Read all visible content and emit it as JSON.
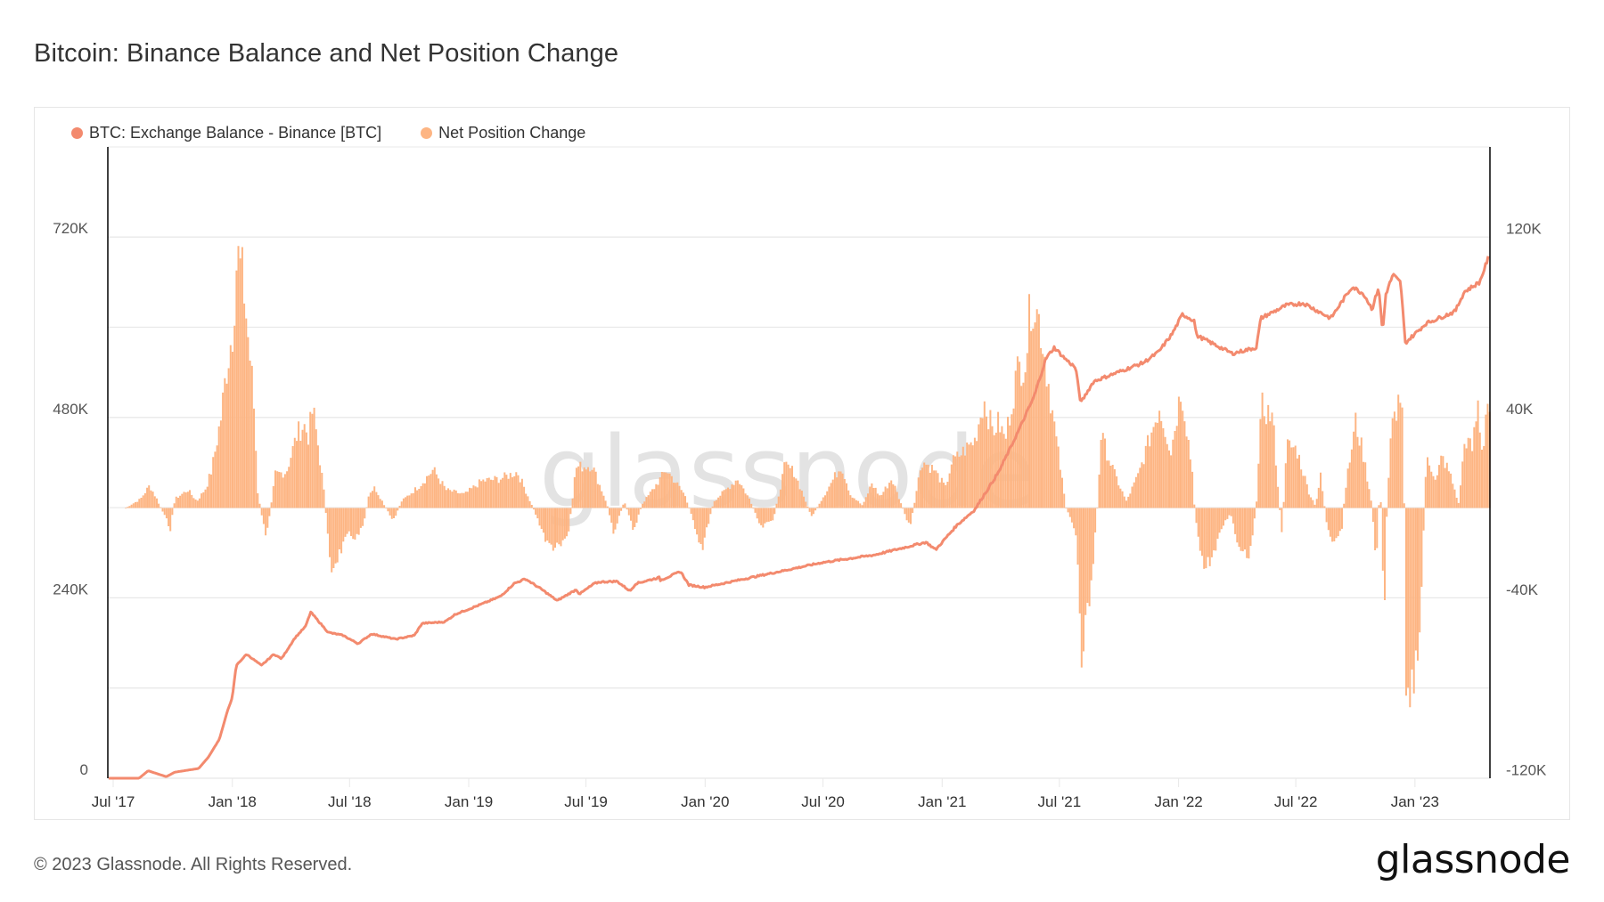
{
  "title": "Bitcoin: Binance Balance and Net Position Change",
  "legend": [
    {
      "label": "BTC: Exchange Balance - Binance [BTC]",
      "color": "#F38A6E"
    },
    {
      "label": "Net Position Change",
      "color": "#FDB583"
    }
  ],
  "footer": {
    "copyright": "© 2023 Glassnode. All Rights Reserved.",
    "logo": "glassnode"
  },
  "watermark": "glassnode",
  "colors": {
    "line": "#F38A6E",
    "bars": "#FDB583",
    "grid": "#e8e8e8",
    "axis": "#000000",
    "panel_border": "#e6e6e6"
  },
  "chart_data": {
    "type": "line+bar",
    "title": "Bitcoin: Binance Balance and Net Position Change",
    "xlabel": "",
    "x_start": "2017-07-01",
    "x_unit": "days since 2017-07-01",
    "x_ticks": [
      {
        "label": "Jul '17",
        "day": 0
      },
      {
        "label": "Jan '18",
        "day": 184
      },
      {
        "label": "Jul '18",
        "day": 365
      },
      {
        "label": "Jan '19",
        "day": 549
      },
      {
        "label": "Jul '19",
        "day": 730
      },
      {
        "label": "Jan '20",
        "day": 914
      },
      {
        "label": "Jul '20",
        "day": 1096
      },
      {
        "label": "Jan '21",
        "day": 1280
      },
      {
        "label": "Jul '21",
        "day": 1461
      },
      {
        "label": "Jan '22",
        "day": 1645
      },
      {
        "label": "Jul '22",
        "day": 1826
      },
      {
        "label": "Jan '23",
        "day": 2010
      }
    ],
    "x_range_days": [
      -7,
      2126
    ],
    "y_left": {
      "label": "BTC: Exchange Balance - Binance [BTC]",
      "range": [
        0,
        840000
      ],
      "ticks": [
        {
          "value": 0,
          "label": "0"
        },
        {
          "value": 240000,
          "label": "240K"
        },
        {
          "value": 480000,
          "label": "480K"
        },
        {
          "value": 720000,
          "label": "720K"
        }
      ],
      "gridlines": [
        0,
        120000,
        240000,
        360000,
        480000,
        600000,
        720000
      ]
    },
    "y_right": {
      "label": "Net Position Change",
      "range": [
        -120000,
        160000
      ],
      "ticks": [
        {
          "value": -120000,
          "label": "-120K"
        },
        {
          "value": -40000,
          "label": "-40K"
        },
        {
          "value": 40000,
          "label": "40K"
        },
        {
          "value": 120000,
          "label": "120K"
        }
      ]
    },
    "grid": true,
    "legend_position": "top-left",
    "series": [
      {
        "name": "BTC: Exchange Balance - Binance [BTC]",
        "type": "line",
        "axis": "left",
        "unit": "K BTC",
        "points": [
          [
            -7,
            0
          ],
          [
            40,
            0
          ],
          [
            54,
            10
          ],
          [
            82,
            2
          ],
          [
            95,
            8
          ],
          [
            132,
            13
          ],
          [
            147,
            28
          ],
          [
            164,
            52
          ],
          [
            176,
            88
          ],
          [
            184,
            108
          ],
          [
            190,
            150
          ],
          [
            206,
            165
          ],
          [
            229,
            150
          ],
          [
            248,
            165
          ],
          [
            260,
            159
          ],
          [
            280,
            186
          ],
          [
            297,
            202
          ],
          [
            305,
            221
          ],
          [
            332,
            194
          ],
          [
            355,
            190
          ],
          [
            378,
            179
          ],
          [
            399,
            192
          ],
          [
            436,
            185
          ],
          [
            465,
            190
          ],
          [
            477,
            206
          ],
          [
            512,
            208
          ],
          [
            528,
            218
          ],
          [
            570,
            232
          ],
          [
            598,
            242
          ],
          [
            619,
            259
          ],
          [
            636,
            265
          ],
          [
            637,
            265
          ],
          [
            662,
            251
          ],
          [
            686,
            236
          ],
          [
            689,
            238
          ],
          [
            715,
            251
          ],
          [
            720,
            245
          ],
          [
            743,
            259
          ],
          [
            751,
            261
          ],
          [
            778,
            262
          ],
          [
            798,
            249
          ],
          [
            807,
            259
          ],
          [
            843,
            267
          ],
          [
            844,
            263
          ],
          [
            860,
            269
          ],
          [
            876,
            275
          ],
          [
            889,
            257
          ],
          [
            898,
            256
          ],
          [
            913,
            254
          ],
          [
            1095,
            287
          ],
          [
            1175,
            297
          ],
          [
            1255,
            314
          ],
          [
            1270,
            304
          ],
          [
            1302,
            336
          ],
          [
            1330,
            357
          ],
          [
            1367,
            407
          ],
          [
            1394,
            455
          ],
          [
            1422,
            508
          ],
          [
            1440,
            558
          ],
          [
            1453,
            573
          ],
          [
            1470,
            558
          ],
          [
            1486,
            546
          ],
          [
            1494,
            499
          ],
          [
            1504,
            514
          ],
          [
            1514,
            528
          ],
          [
            1545,
            538
          ],
          [
            1591,
            553
          ],
          [
            1614,
            567
          ],
          [
            1635,
            591
          ],
          [
            1651,
            617
          ],
          [
            1669,
            609
          ],
          [
            1673,
            589
          ],
          [
            1728,
            565
          ],
          [
            1765,
            573
          ],
          [
            1772,
            612
          ],
          [
            1811,
            629
          ],
          [
            1838,
            632
          ],
          [
            1880,
            612
          ],
          [
            1913,
            654
          ],
          [
            1931,
            644
          ],
          [
            1944,
            624
          ],
          [
            1954,
            654
          ],
          [
            1960,
            593
          ],
          [
            1965,
            644
          ],
          [
            1976,
            670
          ],
          [
            1988,
            659
          ],
          [
            1995,
            579
          ],
          [
            2027,
            605
          ],
          [
            2072,
            621
          ],
          [
            2086,
            647
          ],
          [
            2110,
            660
          ],
          [
            2123,
            692
          ]
        ]
      },
      {
        "name": "Net Position Change",
        "type": "bar",
        "axis": "right",
        "unit": "K BTC",
        "points": [
          [
            18,
            0
          ],
          [
            41,
            4
          ],
          [
            55,
            10
          ],
          [
            66,
            4
          ],
          [
            87,
            -9
          ],
          [
            94,
            4
          ],
          [
            114,
            8
          ],
          [
            128,
            3
          ],
          [
            142,
            9
          ],
          [
            151,
            17
          ],
          [
            165,
            40
          ],
          [
            173,
            60
          ],
          [
            183,
            79
          ],
          [
            190,
            113
          ],
          [
            200,
            99
          ],
          [
            206,
            79
          ],
          [
            215,
            51
          ],
          [
            222,
            7
          ],
          [
            234,
            -13
          ],
          [
            242,
            0
          ],
          [
            249,
            15
          ],
          [
            266,
            16
          ],
          [
            283,
            33
          ],
          [
            293,
            37
          ],
          [
            300,
            32
          ],
          [
            307,
            44
          ],
          [
            316,
            26
          ],
          [
            325,
            5
          ],
          [
            334,
            -28
          ],
          [
            348,
            -20
          ],
          [
            362,
            -12
          ],
          [
            376,
            -13
          ],
          [
            385,
            -8
          ],
          [
            394,
            7
          ],
          [
            403,
            9
          ],
          [
            431,
            -6
          ],
          [
            444,
            3
          ],
          [
            472,
            10
          ],
          [
            493,
            17
          ],
          [
            513,
            8
          ],
          [
            541,
            6
          ],
          [
            568,
            12
          ],
          [
            596,
            13
          ],
          [
            623,
            16
          ],
          [
            647,
            0
          ],
          [
            660,
            -9
          ],
          [
            669,
            -16
          ],
          [
            688,
            -18
          ],
          [
            702,
            -11
          ],
          [
            713,
            18
          ],
          [
            738,
            19
          ],
          [
            761,
            2
          ],
          [
            771,
            -11
          ],
          [
            788,
            3
          ],
          [
            802,
            -10
          ],
          [
            816,
            2
          ],
          [
            834,
            9
          ],
          [
            853,
            17
          ],
          [
            881,
            6
          ],
          [
            899,
            -10
          ],
          [
            908,
            -18
          ],
          [
            926,
            3
          ],
          [
            963,
            13
          ],
          [
            981,
            4
          ],
          [
            999,
            -9
          ],
          [
            1018,
            -5
          ],
          [
            1036,
            19
          ],
          [
            1050,
            16
          ],
          [
            1064,
            6
          ],
          [
            1077,
            -4
          ],
          [
            1109,
            12
          ],
          [
            1123,
            19
          ],
          [
            1137,
            6
          ],
          [
            1156,
            1
          ],
          [
            1170,
            11
          ],
          [
            1183,
            5
          ],
          [
            1201,
            13
          ],
          [
            1229,
            -9
          ],
          [
            1247,
            21
          ],
          [
            1266,
            17
          ],
          [
            1284,
            9
          ],
          [
            1293,
            20
          ],
          [
            1311,
            25
          ],
          [
            1329,
            30
          ],
          [
            1343,
            48
          ],
          [
            1357,
            34
          ],
          [
            1366,
            38
          ],
          [
            1376,
            30
          ],
          [
            1394,
            60
          ],
          [
            1408,
            67
          ],
          [
            1417,
            95
          ],
          [
            1431,
            80
          ],
          [
            1445,
            51
          ],
          [
            1453,
            34
          ],
          [
            1470,
            0
          ],
          [
            1486,
            -12
          ],
          [
            1494,
            -62
          ],
          [
            1508,
            -38
          ],
          [
            1518,
            0
          ],
          [
            1524,
            32
          ],
          [
            1545,
            15
          ],
          [
            1563,
            3
          ],
          [
            1582,
            15
          ],
          [
            1614,
            45
          ],
          [
            1632,
            25
          ],
          [
            1648,
            54
          ],
          [
            1665,
            16
          ],
          [
            1669,
            -3
          ],
          [
            1683,
            -27
          ],
          [
            1701,
            -19
          ],
          [
            1710,
            -9
          ],
          [
            1724,
            -2
          ],
          [
            1734,
            -15
          ],
          [
            1752,
            -21
          ],
          [
            1763,
            -2
          ],
          [
            1772,
            45
          ],
          [
            1789,
            40
          ],
          [
            1803,
            -12
          ],
          [
            1811,
            28
          ],
          [
            1826,
            26
          ],
          [
            1845,
            7
          ],
          [
            1855,
            1
          ],
          [
            1863,
            14
          ],
          [
            1873,
            -8
          ],
          [
            1882,
            -18
          ],
          [
            1896,
            -9
          ],
          [
            1900,
            6
          ],
          [
            1917,
            38
          ],
          [
            1928,
            25
          ],
          [
            1942,
            2
          ],
          [
            1947,
            -18
          ],
          [
            1948,
            -31
          ],
          [
            1955,
            14
          ],
          [
            1961,
            -53
          ],
          [
            1965,
            -4
          ],
          [
            1972,
            34
          ],
          [
            1979,
            43
          ],
          [
            1988,
            52
          ],
          [
            1992,
            2
          ],
          [
            1995,
            -73
          ],
          [
            2003,
            -80
          ],
          [
            2013,
            -71
          ],
          [
            2020,
            -31
          ],
          [
            2023,
            2
          ],
          [
            2027,
            25
          ],
          [
            2041,
            11
          ],
          [
            2050,
            23
          ],
          [
            2063,
            15
          ],
          [
            2076,
            2
          ],
          [
            2086,
            31
          ],
          [
            2097,
            26
          ],
          [
            2106,
            46
          ],
          [
            2113,
            23
          ],
          [
            2120,
            49
          ],
          [
            2126,
            40
          ]
        ]
      }
    ]
  }
}
